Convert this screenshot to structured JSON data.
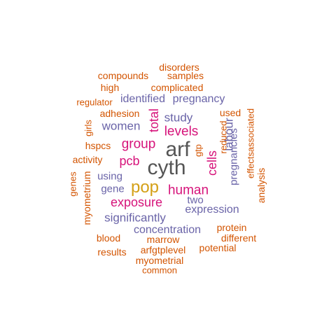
{
  "colors": {
    "dark": "#555555",
    "gold": "#d4a017",
    "magenta": "#d6137a",
    "purple": "#6a64a8",
    "orange": "#d35400"
  },
  "words": [
    {
      "text": "arf",
      "color": "dark"
    },
    {
      "text": "cyth",
      "color": "dark"
    },
    {
      "text": "pop",
      "color": "gold"
    },
    {
      "text": "human",
      "color": "magenta"
    },
    {
      "text": "group",
      "color": "magenta"
    },
    {
      "text": "levels",
      "color": "magenta"
    },
    {
      "text": "exposure",
      "color": "magenta"
    },
    {
      "text": "pcb",
      "color": "magenta"
    },
    {
      "text": "total",
      "color": "magenta"
    },
    {
      "text": "cells",
      "color": "magenta"
    },
    {
      "text": "women",
      "color": "purple"
    },
    {
      "text": "study",
      "color": "purple"
    },
    {
      "text": "labour",
      "color": "purple"
    },
    {
      "text": "pregnancies",
      "color": "purple"
    },
    {
      "text": "identified",
      "color": "purple"
    },
    {
      "text": "pregnancy",
      "color": "purple"
    },
    {
      "text": "using",
      "color": "purple"
    },
    {
      "text": "gene",
      "color": "purple"
    },
    {
      "text": "two",
      "color": "purple"
    },
    {
      "text": "expression",
      "color": "purple"
    },
    {
      "text": "significantly",
      "color": "purple"
    },
    {
      "text": "concentration",
      "color": "purple"
    },
    {
      "text": "disorders",
      "color": "orange"
    },
    {
      "text": "compounds",
      "color": "orange"
    },
    {
      "text": "samples",
      "color": "orange"
    },
    {
      "text": "high",
      "color": "orange"
    },
    {
      "text": "complicated",
      "color": "orange"
    },
    {
      "text": "regulator",
      "color": "orange"
    },
    {
      "text": "adhesion",
      "color": "orange"
    },
    {
      "text": "used",
      "color": "orange"
    },
    {
      "text": "girls",
      "color": "orange"
    },
    {
      "text": "hspcs",
      "color": "orange"
    },
    {
      "text": "gtp",
      "color": "orange"
    },
    {
      "text": "reduced",
      "color": "orange"
    },
    {
      "text": "associated",
      "color": "orange"
    },
    {
      "text": "effects",
      "color": "orange"
    },
    {
      "text": "activity",
      "color": "orange"
    },
    {
      "text": "genes",
      "color": "orange"
    },
    {
      "text": "myometrium",
      "color": "orange"
    },
    {
      "text": "analysis",
      "color": "orange"
    },
    {
      "text": "protein",
      "color": "orange"
    },
    {
      "text": "different",
      "color": "orange"
    },
    {
      "text": "blood",
      "color": "orange"
    },
    {
      "text": "marrow",
      "color": "orange"
    },
    {
      "text": "potential",
      "color": "orange"
    },
    {
      "text": "results",
      "color": "orange"
    },
    {
      "text": "arfgtplevel",
      "color": "orange"
    },
    {
      "text": "myometrial",
      "color": "orange"
    },
    {
      "text": "common",
      "color": "orange"
    }
  ]
}
